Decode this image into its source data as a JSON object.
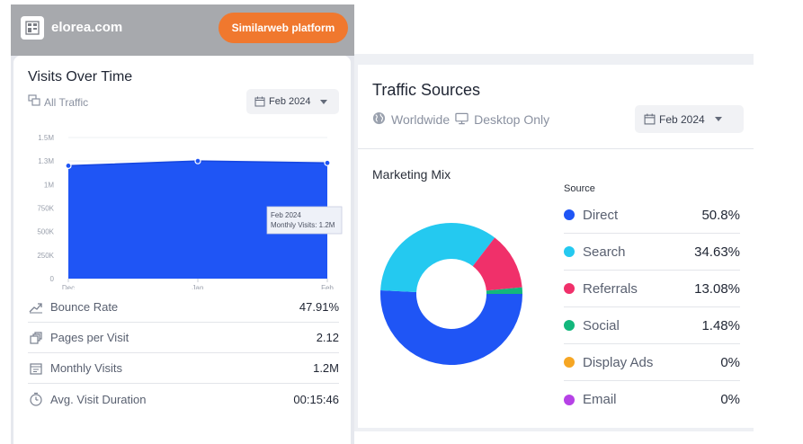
{
  "header": {
    "site_name": "elorea.com",
    "platform_button": "Similarweb platform"
  },
  "visits": {
    "title": "Visits Over Time",
    "filter_label": "All Traffic",
    "date_select": "Feb 2024",
    "tooltip": {
      "title": "Feb 2024",
      "text": "Monthly Visits: 1.2M"
    },
    "metrics": [
      {
        "label": "Bounce Rate",
        "value": "47.91%",
        "icon": "trend-down-icon"
      },
      {
        "label": "Pages per Visit",
        "value": "2.12",
        "icon": "pages-icon"
      },
      {
        "label": "Monthly Visits",
        "value": "1.2M",
        "icon": "calendar-icon"
      },
      {
        "label": "Avg. Visit Duration",
        "value": "00:15:46",
        "icon": "clock-icon"
      }
    ]
  },
  "chart_data": [
    {
      "type": "area",
      "title": "Visits Over Time",
      "categories": [
        "Dec",
        "Jan",
        "Feb"
      ],
      "series": [
        {
          "name": "Monthly Visits",
          "values": [
            1200000,
            1250000,
            1230000
          ]
        }
      ],
      "ylim": [
        0,
        1500000
      ],
      "yticks": [
        "0",
        "250K",
        "500K",
        "750K",
        "1M",
        "1.3M",
        "1.5M"
      ],
      "color": "#1f55f5"
    },
    {
      "type": "pie",
      "title": "Marketing Mix",
      "categories": [
        "Direct",
        "Search",
        "Referrals",
        "Social",
        "Display Ads",
        "Email"
      ],
      "values": [
        50.8,
        34.63,
        13.08,
        1.48,
        0,
        0
      ],
      "colors": [
        "#1f55f5",
        "#24c9f0",
        "#f0306a",
        "#13b77c",
        "#f6a623",
        "#b642e6"
      ]
    }
  ],
  "sources": {
    "title": "Traffic Sources",
    "geo_label": "Worldwide",
    "device_label": "Desktop Only",
    "date_select": "Feb 2024",
    "mix_title": "Marketing Mix",
    "source_heading": "Source",
    "items": [
      {
        "label": "Direct",
        "value": "50.8%",
        "color": "#1f55f5"
      },
      {
        "label": "Search",
        "value": "34.63%",
        "color": "#24c9f0"
      },
      {
        "label": "Referrals",
        "value": "13.08%",
        "color": "#f0306a"
      },
      {
        "label": "Social",
        "value": "1.48%",
        "color": "#13b77c"
      },
      {
        "label": "Display Ads",
        "value": "0%",
        "color": "#f6a623"
      },
      {
        "label": "Email",
        "value": "0%",
        "color": "#b642e6"
      }
    ]
  }
}
